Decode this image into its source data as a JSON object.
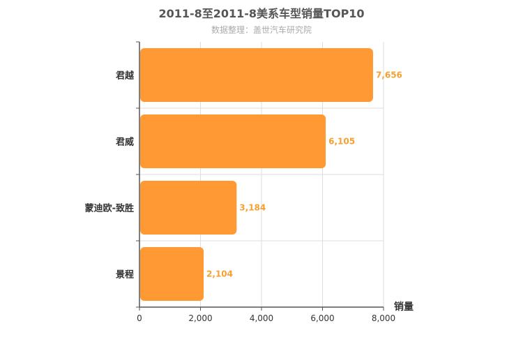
{
  "chart_data": {
    "type": "bar",
    "orientation": "horizontal",
    "title": "2011-8至2011-8美系车型销量TOP10",
    "subtitle": "数据整理：盖世汽车研究院",
    "xlabel": "销量",
    "ylabel": "",
    "categories": [
      "君越",
      "君威",
      "蒙迪欧-致胜",
      "景程"
    ],
    "values": [
      7656,
      6105,
      3184,
      2104
    ],
    "value_labels": [
      "7,656",
      "6,105",
      "3,184",
      "2,104"
    ],
    "xlim": [
      0,
      8000
    ],
    "xticks": [
      0,
      2000,
      4000,
      6000,
      8000
    ],
    "xtick_labels": [
      "0",
      "2,000",
      "4,000",
      "6,000",
      "8,000"
    ],
    "grid": true,
    "bar_color": "#ff9933",
    "label_color": "#f5a030"
  }
}
